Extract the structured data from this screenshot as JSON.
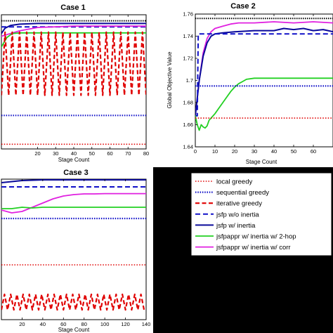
{
  "colors": {
    "local_greedy": "#e00000",
    "sequential_greedy": "#1010c8",
    "iterative_greedy": "#e00000",
    "jsfp_wo_inertia": "#1010c8",
    "jsfp_w_inertia": "#0a0a9a",
    "jsfpappr_2hop": "#22d022",
    "jsfpappr_corr": "#e020e0",
    "optimal": "#000000",
    "black_panel": "#000000"
  },
  "legend": {
    "entries": [
      {
        "key": "local_greedy",
        "label": "local greedy",
        "style": "dotted"
      },
      {
        "key": "sequential_greedy",
        "label": "sequential greedy",
        "style": "dotted-thick"
      },
      {
        "key": "iterative_greedy",
        "label": "iterative greedy",
        "style": "dashed"
      },
      {
        "key": "jsfp_wo_inertia",
        "label": "jsfp w/o inertia",
        "style": "dashed"
      },
      {
        "key": "jsfp_w_inertia",
        "label": "jsfp w/ inertia",
        "style": "solid"
      },
      {
        "key": "jsfpappr_2hop",
        "label": "jsfpappr w/ inertia w/ 2-hop",
        "style": "solid"
      },
      {
        "key": "jsfpappr_corr",
        "label": "jsfpappr w/ inertia w/ corr",
        "style": "solid"
      }
    ]
  },
  "chart_data": [
    {
      "type": "line",
      "title": "Case 1",
      "xlabel": "Stage Count",
      "ylabel": "",
      "xlim": [
        0,
        80
      ],
      "ylim": [
        0,
        1
      ],
      "xticks": [
        20,
        30,
        40,
        50,
        60,
        70,
        80
      ],
      "xtick_labels": [
        "20",
        "30",
        "40",
        "50",
        "60",
        "70",
        "80"
      ],
      "yticks": [],
      "series": [
        {
          "key": "optimal",
          "values": {
            "x": [
              0,
              80
            ],
            "y": [
              0.955,
              0.955
            ]
          }
        },
        {
          "key": "jsfp_w_inertia",
          "values": {
            "x": [
              0,
              2,
              5,
              10,
              20,
              40,
              60,
              80
            ],
            "y": [
              0.86,
              0.9,
              0.92,
              0.93,
              0.935,
              0.935,
              0.935,
              0.935
            ]
          }
        },
        {
          "key": "jsfp_wo_inertia",
          "values": {
            "x": [
              0,
              80
            ],
            "y": [
              0.91,
              0.91
            ]
          }
        },
        {
          "key": "jsfpappr_corr",
          "values": {
            "x": [
              0,
              5,
              10,
              20,
              40,
              60,
              80
            ],
            "y": [
              0.84,
              0.86,
              0.88,
              0.905,
              0.915,
              0.915,
              0.915
            ]
          }
        },
        {
          "key": "jsfpappr_2hop",
          "values": {
            "x": [
              0,
              3,
              6,
              10,
              15,
              20,
              80
            ],
            "y": [
              0.76,
              0.83,
              0.86,
              0.865,
              0.865,
              0.865,
              0.865
            ]
          }
        },
        {
          "key": "iterative_greedy",
          "values": {
            "x": [
              0,
              80
            ],
            "y": [
              0.55,
              0.55
            ]
          },
          "oscillation": {
            "period": 4,
            "low": 0.4,
            "high": 0.87
          }
        },
        {
          "key": "sequential_greedy",
          "values": {
            "x": [
              0,
              80
            ],
            "y": [
              0.25,
              0.25
            ]
          }
        },
        {
          "key": "local_greedy",
          "values": {
            "x": [
              0,
              80
            ],
            "y": [
              0.035,
              0.035
            ]
          }
        }
      ]
    },
    {
      "type": "line",
      "title": "Case 2",
      "xlabel": "Stage Count",
      "ylabel": "Global Objective Value",
      "xlim": [
        0,
        70
      ],
      "ylim": [
        1.64,
        1.76
      ],
      "xticks": [
        0,
        10,
        20,
        30,
        40,
        50,
        60
      ],
      "xtick_labels": [
        "0",
        "10",
        "20",
        "30",
        "40",
        "50",
        "60"
      ],
      "yticks": [
        1.64,
        1.66,
        1.68,
        1.7,
        1.72,
        1.74,
        1.76
      ],
      "ytick_labels": [
        "1.64",
        "1.66",
        "1.68",
        "1.7",
        "1.72",
        "1.74",
        "1.76"
      ],
      "series": [
        {
          "key": "optimal",
          "values": {
            "x": [
              0,
              70
            ],
            "y": [
              1.756,
              1.756
            ]
          }
        },
        {
          "key": "jsfpappr_corr",
          "values": {
            "x": [
              0,
              2,
              4,
              6,
              8,
              10,
              14,
              18,
              22,
              26,
              30,
              40,
              50,
              60,
              70
            ],
            "y": [
              1.668,
              1.7,
              1.725,
              1.738,
              1.744,
              1.747,
              1.749,
              1.751,
              1.752,
              1.752,
              1.752,
              1.753,
              1.752,
              1.753,
              1.752
            ]
          }
        },
        {
          "key": "jsfp_w_inertia",
          "values": {
            "x": [
              0,
              2,
              4,
              6,
              8,
              10,
              14,
              20,
              30,
              40,
              45,
              50,
              55,
              60,
              65,
              70
            ],
            "y": [
              1.668,
              1.7,
              1.722,
              1.734,
              1.74,
              1.742,
              1.743,
              1.744,
              1.745,
              1.745,
              1.747,
              1.746,
              1.747,
              1.745,
              1.746,
              1.744
            ]
          }
        },
        {
          "key": "jsfp_wo_inertia",
          "values": {
            "x": [
              0,
              1,
              1.5,
              2,
              2.5,
              70
            ],
            "y": [
              1.668,
              1.668,
              1.742,
              1.742,
              1.742,
              1.742
            ]
          }
        },
        {
          "key": "jsfpappr_2hop",
          "values": {
            "x": [
              0,
              1,
              2,
              3,
              4,
              5,
              6,
              7,
              8,
              10,
              12,
              14,
              16,
              18,
              20,
              22,
              24,
              26,
              30,
              40,
              50,
              60,
              70
            ],
            "y": [
              1.668,
              1.66,
              1.655,
              1.66,
              1.658,
              1.657,
              1.659,
              1.664,
              1.666,
              1.67,
              1.675,
              1.68,
              1.685,
              1.69,
              1.694,
              1.697,
              1.699,
              1.701,
              1.702,
              1.702,
              1.702,
              1.702,
              1.702
            ]
          }
        },
        {
          "key": "sequential_greedy",
          "values": {
            "x": [
              0,
              70
            ],
            "y": [
              1.695,
              1.695
            ]
          }
        },
        {
          "key": "local_greedy",
          "values": {
            "x": [
              0,
              70
            ],
            "y": [
              1.666,
              1.666
            ]
          }
        }
      ]
    },
    {
      "type": "line",
      "title": "Case 3",
      "xlabel": "Stage Count",
      "ylabel": "",
      "xlim": [
        0,
        140
      ],
      "ylim": [
        0,
        1
      ],
      "xticks": [
        20,
        40,
        60,
        80,
        100,
        120,
        140
      ],
      "xtick_labels": [
        "20",
        "40",
        "60",
        "80",
        "100",
        "120",
        "140"
      ],
      "yticks": [],
      "series": [
        {
          "key": "jsfp_w_inertia",
          "values": {
            "x": [
              0,
              20,
              40,
              60,
              80,
              100,
              120,
              140
            ],
            "y": [
              0.975,
              0.99,
              0.995,
              0.995,
              0.995,
              0.995,
              0.995,
              0.995
            ]
          }
        },
        {
          "key": "jsfp_wo_inertia",
          "values": {
            "x": [
              0,
              140
            ],
            "y": [
              0.945,
              0.945
            ]
          }
        },
        {
          "key": "jsfpappr_corr",
          "values": {
            "x": [
              0,
              10,
              20,
              30,
              40,
              50,
              60,
              70,
              80,
              90,
              100,
              110,
              120,
              130,
              140
            ],
            "y": [
              0.78,
              0.76,
              0.77,
              0.8,
              0.83,
              0.86,
              0.88,
              0.89,
              0.895,
              0.895,
              0.897,
              0.897,
              0.897,
              0.897,
              0.897
            ]
          }
        },
        {
          "key": "jsfpappr_2hop",
          "values": {
            "x": [
              0,
              10,
              20,
              30,
              40,
              60,
              80,
              100,
              140
            ],
            "y": [
              0.79,
              0.79,
              0.8,
              0.795,
              0.8,
              0.8,
              0.8,
              0.8,
              0.8
            ]
          }
        },
        {
          "key": "sequential_greedy",
          "values": {
            "x": [
              0,
              140
            ],
            "y": [
              0.72,
              0.72
            ]
          }
        },
        {
          "key": "local_greedy",
          "values": {
            "x": [
              0,
              140
            ],
            "y": [
              0.39,
              0.39
            ]
          }
        },
        {
          "key": "iterative_greedy",
          "values": {
            "x": [
              0,
              140
            ],
            "y": [
              0.13,
              0.13
            ]
          },
          "oscillation": {
            "period": 6,
            "low": 0.07,
            "high": 0.18
          }
        }
      ]
    }
  ]
}
